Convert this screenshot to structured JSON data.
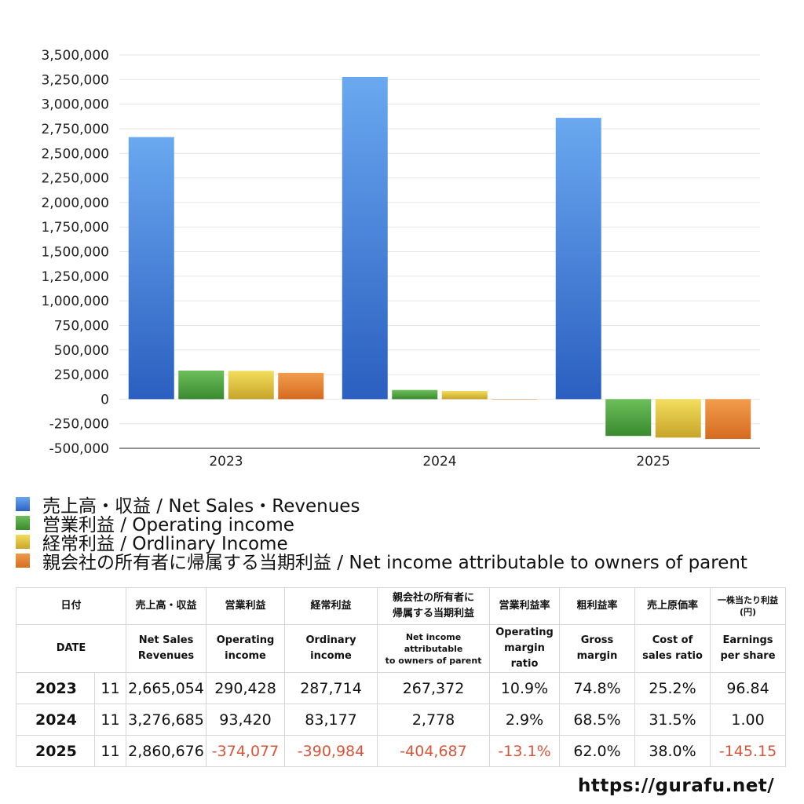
{
  "chart_data": {
    "type": "bar",
    "categories": [
      "2023",
      "2024",
      "2025"
    ],
    "ylim": [
      -500000,
      3500000
    ],
    "yticks": [
      "3,500,000",
      "3,250,000",
      "3,000,000",
      "2,750,000",
      "2,500,000",
      "2,250,000",
      "2,000,000",
      "1,750,000",
      "1,500,000",
      "1,250,000",
      "1,000,000",
      "750,000",
      "500,000",
      "250,000",
      "0",
      "-250,000",
      "-500,000"
    ],
    "ytick_values": [
      3500000,
      3250000,
      3000000,
      2750000,
      2500000,
      2250000,
      2000000,
      1750000,
      1500000,
      1250000,
      1000000,
      750000,
      500000,
      250000,
      0,
      -250000,
      -500000
    ],
    "grid": true,
    "legend_position": "bottom",
    "series": [
      {
        "name": "売上高・収益 / Net Sales・Revenues",
        "color": "#3c78d8",
        "values": [
          2665054,
          3276685,
          2860676
        ]
      },
      {
        "name": "営業利益 / Operating income",
        "color": "#4a9e3f",
        "values": [
          290428,
          93420,
          -374077
        ]
      },
      {
        "name": "経常利益 / Ordlinary Income",
        "color": "#d9c13a",
        "values": [
          287714,
          83177,
          -390984
        ]
      },
      {
        "name": "親会社の所有者に帰属する当期利益 / Net income attributable to owners of parent",
        "color": "#e0802f",
        "values": [
          267372,
          2778,
          -404687
        ]
      }
    ]
  },
  "table": {
    "header_jp": {
      "date": "日付",
      "sales": "売上高・収益",
      "op": "営業利益",
      "ord": "経常利益",
      "net_line1": "親会社の所有者に",
      "net_line2": "帰属する当期利益",
      "opm": "営業利益率",
      "gross": "粗利益率",
      "cost": "売上原価率",
      "eps_line1": "一株当たり利益",
      "eps_line2": "(円)"
    },
    "header_en": {
      "date": "DATE",
      "sales_line1": "Net Sales",
      "sales_line2": "Revenues",
      "op_line1": "Operating",
      "op_line2": "income",
      "ord_line1": "Ordinary",
      "ord_line2": "income",
      "net_line1": "Net income attributable",
      "net_line2": "to owners of parent",
      "opm_line1": "Operating",
      "opm_line2": "margin",
      "opm_line3": "ratio",
      "gross_line1": "Gross",
      "gross_line2": "margin",
      "cost_line1": "Cost of",
      "cost_line2": "sales ratio",
      "eps_line1": "Earnings",
      "eps_line2": "per share"
    },
    "rows": [
      {
        "year": "2023",
        "month": "11",
        "sales": "2,665,054",
        "op": "290,428",
        "ord": "287,714",
        "net": "267,372",
        "opm": "10.9%",
        "gross": "74.8%",
        "cost": "25.2%",
        "eps": "96.84"
      },
      {
        "year": "2024",
        "month": "11",
        "sales": "3,276,685",
        "op": "93,420",
        "ord": "83,177",
        "net": "2,778",
        "opm": "2.9%",
        "gross": "68.5%",
        "cost": "31.5%",
        "eps": "1.00"
      },
      {
        "year": "2025",
        "month": "11",
        "sales": "2,860,676",
        "op": "-374,077",
        "ord": "-390,984",
        "net": "-404,687",
        "opm": "-13.1%",
        "gross": "62.0%",
        "cost": "38.0%",
        "eps": "-145.15"
      }
    ]
  },
  "footer": {
    "site": "https://gurafu.net/"
  }
}
